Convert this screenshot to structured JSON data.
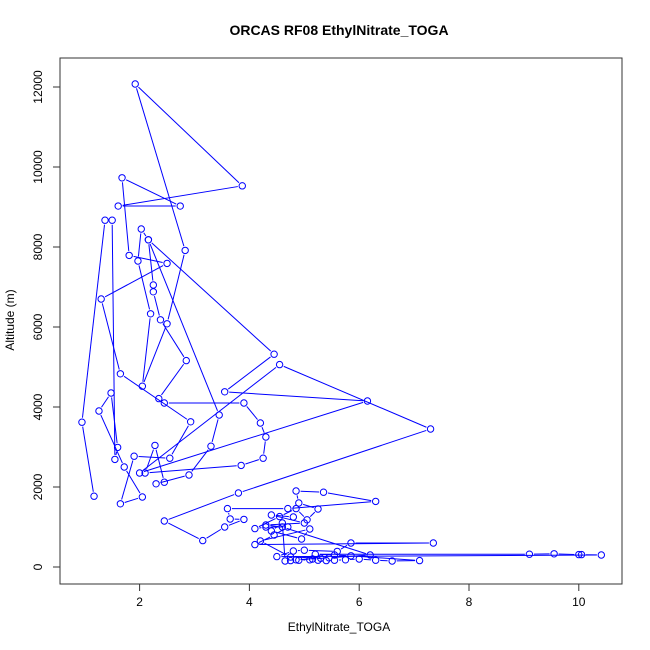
{
  "chart_data": {
    "type": "line+points",
    "title": "ORCAS RF08 EthylNitrate_TOGA",
    "xlabel": "EthylNitrate_TOGA",
    "ylabel": "Altitude (m)",
    "xlim": [
      0.6,
      10.8
    ],
    "ylim": [
      -400,
      12700
    ],
    "xticks": [
      2,
      4,
      6,
      8,
      10
    ],
    "yticks": [
      0,
      2000,
      4000,
      6000,
      8000,
      10000,
      12000
    ],
    "grid": false,
    "color": "#0000ff",
    "points": [
      [
        1.17,
        1770
      ],
      [
        0.95,
        3620
      ],
      [
        1.37,
        8670
      ],
      [
        1.5,
        8670
      ],
      [
        1.55,
        2690
      ],
      [
        1.6,
        2990
      ],
      [
        1.48,
        4350
      ],
      [
        1.26,
        3900
      ],
      [
        1.72,
        2500
      ],
      [
        2.05,
        1750
      ],
      [
        1.65,
        1580
      ],
      [
        1.9,
        2770
      ],
      [
        2.55,
        2720
      ],
      [
        2.93,
        3630
      ],
      [
        1.65,
        4830
      ],
      [
        1.3,
        6700
      ],
      [
        2.5,
        7590
      ],
      [
        1.81,
        7790
      ],
      [
        1.68,
        9730
      ],
      [
        2.74,
        9024
      ],
      [
        1.61,
        9024
      ],
      [
        3.87,
        9529
      ],
      [
        1.92,
        12075
      ],
      [
        2.83,
        7915
      ],
      [
        2.5,
        6080
      ],
      [
        2.05,
        4520
      ],
      [
        2.2,
        6330
      ],
      [
        1.97,
        7650
      ],
      [
        2.03,
        8450
      ],
      [
        2.16,
        8180
      ],
      [
        2.25,
        7050
      ],
      [
        2.25,
        6880
      ],
      [
        2.38,
        6180
      ],
      [
        2.85,
        5160
      ],
      [
        2.35,
        4210
      ],
      [
        2.45,
        4100
      ],
      [
        3.9,
        4100
      ],
      [
        4.2,
        3600
      ],
      [
        4.3,
        3250
      ],
      [
        4.25,
        2720
      ],
      [
        3.85,
        2540
      ],
      [
        2.1,
        2350
      ],
      [
        2.28,
        3040
      ],
      [
        2.45,
        2120
      ],
      [
        2.3,
        2080
      ],
      [
        2.9,
        2300
      ],
      [
        3.3,
        3020
      ],
      [
        3.45,
        3800
      ],
      [
        2.16,
        8180
      ],
      [
        4.45,
        5320
      ],
      [
        3.55,
        4380
      ],
      [
        6.15,
        4150
      ],
      [
        2.0,
        2350
      ],
      [
        4.55,
        5060
      ],
      [
        7.3,
        3450
      ],
      [
        3.8,
        1850
      ],
      [
        2.45,
        1150
      ],
      [
        3.15,
        660
      ],
      [
        3.55,
        1000
      ],
      [
        3.9,
        1190
      ],
      [
        3.65,
        1200
      ],
      [
        3.6,
        1460
      ],
      [
        4.7,
        1460
      ],
      [
        6.3,
        1640
      ],
      [
        5.35,
        1870
      ],
      [
        4.85,
        1900
      ],
      [
        4.9,
        1600
      ],
      [
        5.25,
        1450
      ],
      [
        5.05,
        1180
      ],
      [
        4.85,
        1460
      ],
      [
        4.55,
        1260
      ],
      [
        4.1,
        960
      ],
      [
        4.3,
        1000
      ],
      [
        4.7,
        1000
      ],
      [
        4.45,
        800
      ],
      [
        4.1,
        560
      ],
      [
        7.35,
        600
      ],
      [
        5.85,
        600
      ],
      [
        5.6,
        390
      ],
      [
        5.0,
        420
      ],
      [
        4.8,
        400
      ],
      [
        4.5,
        260
      ],
      [
        10.41,
        300
      ],
      [
        10.05,
        310
      ],
      [
        10.0,
        310
      ],
      [
        9.55,
        330
      ],
      [
        9.1,
        320
      ],
      [
        5.2,
        320
      ],
      [
        5.55,
        300
      ],
      [
        5.85,
        280
      ],
      [
        7.1,
        160
      ],
      [
        6.6,
        150
      ],
      [
        6.3,
        170
      ],
      [
        6.0,
        200
      ],
      [
        5.75,
        180
      ],
      [
        5.55,
        170
      ],
      [
        5.4,
        160
      ],
      [
        5.25,
        170
      ],
      [
        5.1,
        180
      ],
      [
        4.9,
        170
      ],
      [
        4.75,
        160
      ],
      [
        4.65,
        150
      ],
      [
        4.6,
        1100
      ],
      [
        4.4,
        900
      ],
      [
        4.95,
        700
      ],
      [
        5.1,
        950
      ],
      [
        4.2,
        650
      ],
      [
        4.75,
        250
      ],
      [
        5.3,
        220
      ],
      [
        4.85,
        180
      ],
      [
        5.15,
        200
      ],
      [
        5.45,
        230
      ],
      [
        6.2,
        300
      ],
      [
        4.6,
        1000
      ],
      [
        4.3,
        1050
      ],
      [
        5.0,
        1100
      ],
      [
        4.4,
        1300
      ],
      [
        4.8,
        1250
      ]
    ]
  }
}
